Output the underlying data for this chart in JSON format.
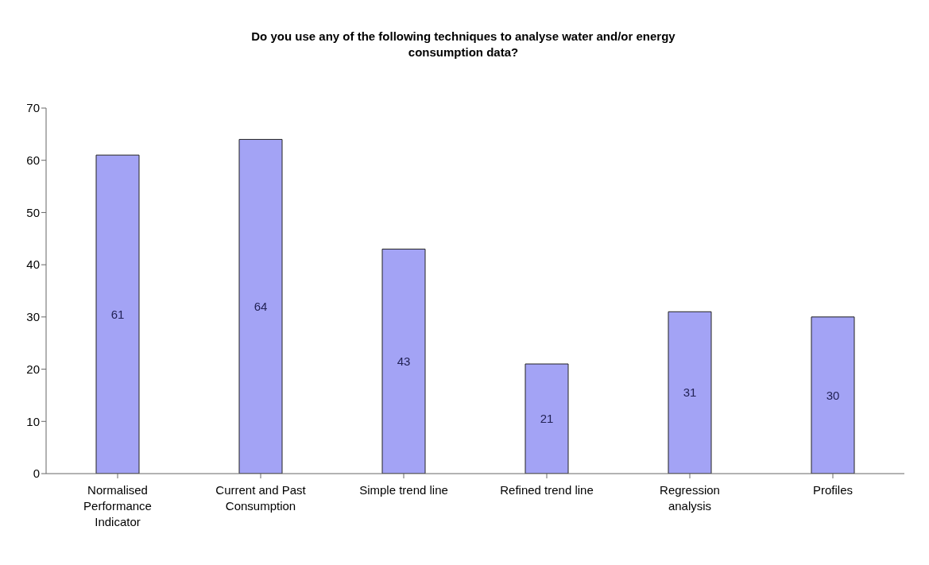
{
  "chart_data": {
    "type": "bar",
    "title": "Do you use any of the following techniques to analyse water and/or energy consumption data?",
    "categories": [
      "Normalised Performance Indicator",
      "Current and Past Consumption",
      "Simple trend line",
      "Refined trend line",
      "Regression analysis",
      "Profiles"
    ],
    "values": [
      61,
      64,
      43,
      21,
      31,
      30
    ],
    "color": "#a3a3f5",
    "ylim": [
      0,
      70
    ],
    "yticks": [
      0,
      10,
      20,
      30,
      40,
      50,
      60,
      70
    ],
    "grid": false,
    "data_labels": true
  }
}
